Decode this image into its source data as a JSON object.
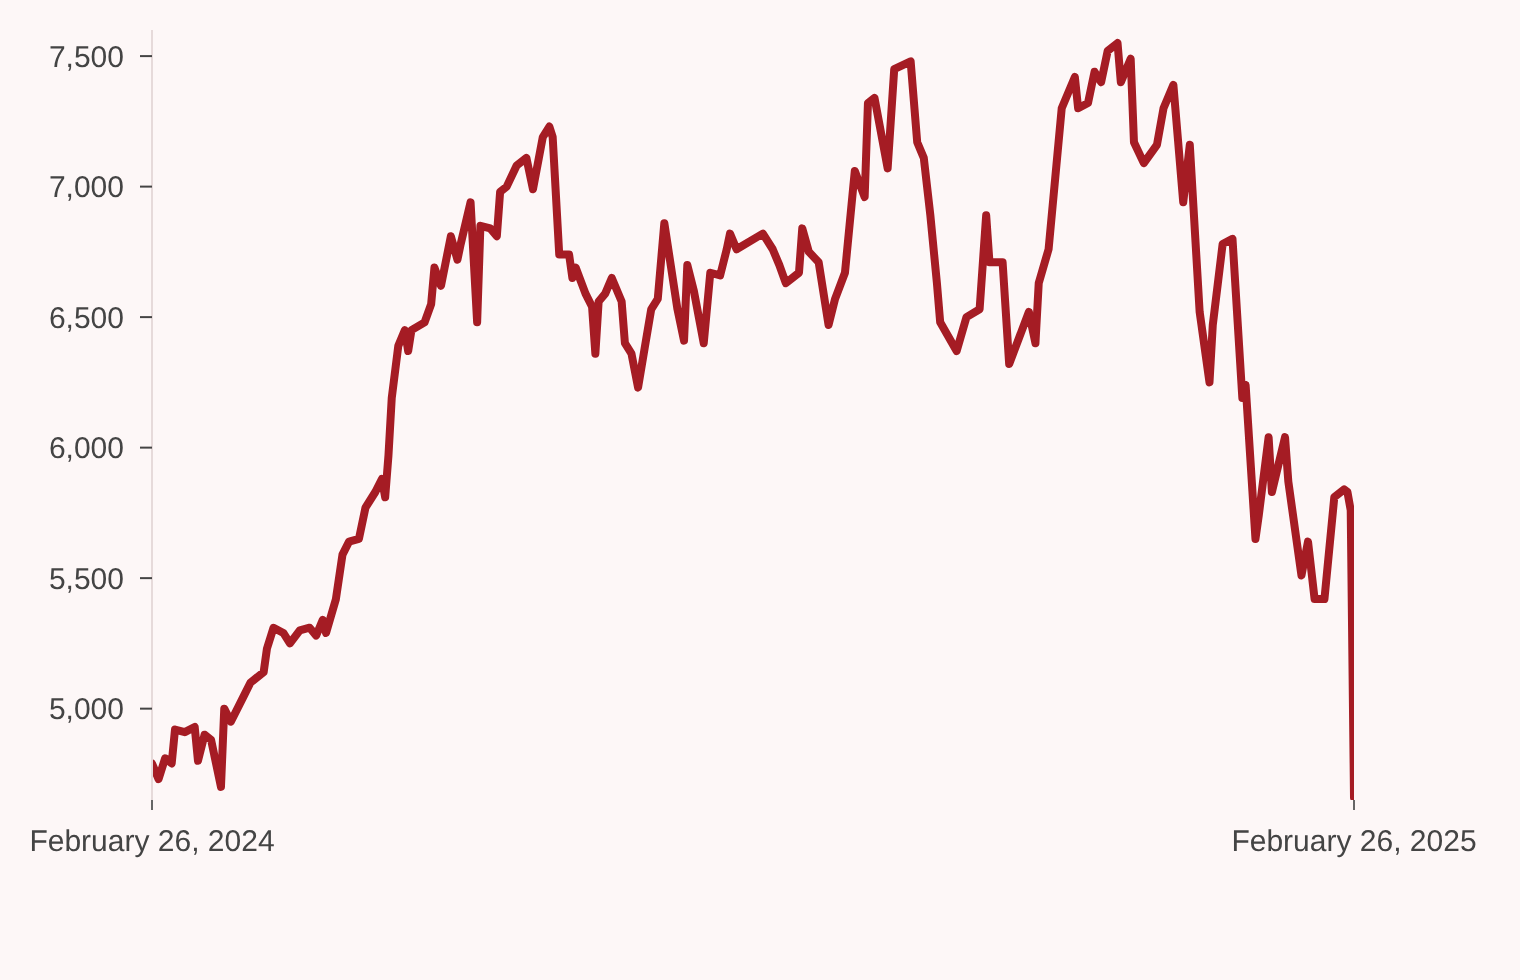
{
  "chart_data": {
    "type": "line",
    "x": [
      "2024-02-26",
      "2024-02-28",
      "2024-03-01",
      "2024-03-03",
      "2024-03-04",
      "2024-03-07",
      "2024-03-10",
      "2024-03-11",
      "2024-03-13",
      "2024-03-15",
      "2024-03-18",
      "2024-03-19",
      "2024-03-21",
      "2024-03-25",
      "2024-03-27",
      "2024-03-31",
      "2024-04-01",
      "2024-04-03",
      "2024-04-06",
      "2024-04-08",
      "2024-04-11",
      "2024-04-14",
      "2024-04-16",
      "2024-04-18",
      "2024-04-19",
      "2024-04-22",
      "2024-04-24",
      "2024-04-26",
      "2024-04-29",
      "2024-05-01",
      "2024-05-04",
      "2024-05-06",
      "2024-05-07",
      "2024-05-08",
      "2024-05-09",
      "2024-05-11",
      "2024-05-13",
      "2024-05-14",
      "2024-05-15",
      "2024-05-19",
      "2024-05-21",
      "2024-05-22",
      "2024-05-24",
      "2024-05-27",
      "2024-05-29",
      "2024-05-30",
      "2024-06-02",
      "2024-06-04",
      "2024-06-05",
      "2024-06-08",
      "2024-06-10",
      "2024-06-11",
      "2024-06-13",
      "2024-06-16",
      "2024-06-19",
      "2024-06-21",
      "2024-06-24",
      "2024-06-26",
      "2024-06-27",
      "2024-06-29",
      "2024-07-02",
      "2024-07-03",
      "2024-07-04",
      "2024-07-07",
      "2024-07-09",
      "2024-07-10",
      "2024-07-11",
      "2024-07-13",
      "2024-07-15",
      "2024-07-18",
      "2024-07-19",
      "2024-07-21",
      "2024-07-23",
      "2024-07-25",
      "2024-07-27",
      "2024-07-29",
      "2024-07-31",
      "2024-08-04",
      "2024-08-06",
      "2024-08-07",
      "2024-08-09",
      "2024-08-12",
      "2024-08-14",
      "2024-08-17",
      "2024-08-19",
      "2024-08-20",
      "2024-08-22",
      "2024-08-30",
      "2024-09-02",
      "2024-09-04",
      "2024-09-06",
      "2024-09-10",
      "2024-09-11",
      "2024-09-13",
      "2024-09-16",
      "2024-09-19",
      "2024-09-21",
      "2024-09-24",
      "2024-09-27",
      "2024-09-30",
      "2024-10-01",
      "2024-10-03",
      "2024-10-07",
      "2024-10-09",
      "2024-10-14",
      "2024-10-16",
      "2024-10-18",
      "2024-10-20",
      "2024-10-22",
      "2024-10-23",
      "2024-10-28",
      "2024-10-31",
      "2024-11-04",
      "2024-11-06",
      "2024-11-07",
      "2024-11-11",
      "2024-11-13",
      "2024-11-19",
      "2024-11-21",
      "2024-11-22",
      "2024-11-25",
      "2024-11-29",
      "2024-12-03",
      "2024-12-04",
      "2024-12-07",
      "2024-12-09",
      "2024-12-11",
      "2024-12-13",
      "2024-12-16",
      "2024-12-17",
      "2024-12-20",
      "2024-12-21",
      "2024-12-24",
      "2024-12-28",
      "2024-12-30",
      "2025-01-02",
      "2025-01-05",
      "2025-01-07",
      "2025-01-10",
      "2025-01-13",
      "2025-01-14",
      "2025-01-17",
      "2025-01-20",
      "2025-01-23",
      "2025-01-24",
      "2025-01-27",
      "2025-01-28",
      "2025-01-31",
      "2025-02-01",
      "2025-02-05",
      "2025-02-06",
      "2025-02-10",
      "2025-02-12",
      "2025-02-14",
      "2025-02-17",
      "2025-02-20",
      "2025-02-23",
      "2025-02-24",
      "2025-02-25",
      "2025-02-26"
    ],
    "series": [
      {
        "color": "#a51c24",
        "values": [
          4790,
          4730,
          4810,
          4790,
          4920,
          4910,
          4930,
          4800,
          4900,
          4880,
          4700,
          5000,
          4950,
          5050,
          5100,
          5140,
          5230,
          5310,
          5290,
          5250,
          5300,
          5310,
          5280,
          5340,
          5290,
          5420,
          5590,
          5640,
          5650,
          5770,
          5830,
          5880,
          5810,
          5970,
          6190,
          6390,
          6450,
          6370,
          6450,
          6480,
          6550,
          6690,
          6620,
          6810,
          6720,
          6780,
          6940,
          6480,
          6850,
          6840,
          6810,
          6980,
          7000,
          7080,
          7110,
          6990,
          7190,
          7230,
          7190,
          6740,
          6740,
          6650,
          6690,
          6590,
          6540,
          6360,
          6560,
          6590,
          6650,
          6560,
          6400,
          6360,
          6230,
          6380,
          6530,
          6570,
          6860,
          6530,
          6410,
          6700,
          6600,
          6400,
          6670,
          6660,
          6760,
          6820,
          6760,
          6820,
          6760,
          6700,
          6630,
          6670,
          6840,
          6750,
          6710,
          6470,
          6570,
          6670,
          7060,
          6960,
          7320,
          7340,
          7070,
          7450,
          7480,
          7170,
          7110,
          6890,
          6630,
          6480,
          6370,
          6500,
          6530,
          6890,
          6710,
          6710,
          6320,
          6520,
          6400,
          6630,
          6760,
          7300,
          7420,
          7300,
          7320,
          7440,
          7400,
          7520,
          7550,
          7400,
          7490,
          7170,
          7090,
          7160,
          7300,
          7390,
          6940,
          7160,
          6520,
          6250,
          6470,
          6780,
          6800,
          6190,
          6240,
          5650,
          5740,
          6040,
          5830,
          6040,
          5870,
          5510,
          5640,
          5420,
          5420,
          5810,
          5840,
          5830,
          5760,
          4660
        ]
      }
    ],
    "xlim": [
      "2024-02-26",
      "2025-02-26"
    ],
    "xticks": [
      {
        "value": "2024-02-26",
        "label": "February 26, 2024"
      },
      {
        "value": "2025-02-26",
        "label": "February 26, 2025"
      }
    ],
    "ylim": [
      4650,
      7600
    ],
    "yticks": [
      {
        "value": 5000,
        "label": "5,000"
      },
      {
        "value": 5500,
        "label": "5,500"
      },
      {
        "value": 6000,
        "label": "6,000"
      },
      {
        "value": 6500,
        "label": "6,500"
      },
      {
        "value": 7000,
        "label": "7,000"
      },
      {
        "value": 7500,
        "label": "7,500"
      }
    ]
  }
}
